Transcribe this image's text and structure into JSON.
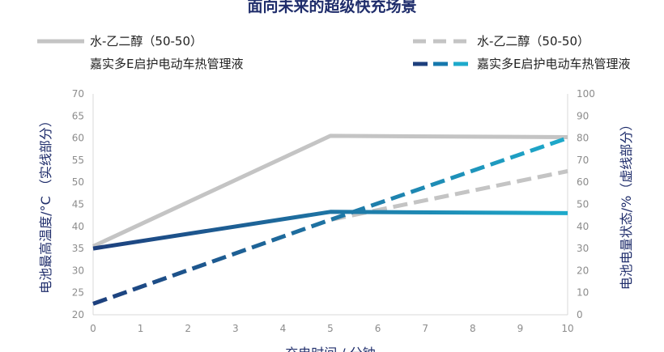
{
  "chart_data": {
    "type": "line",
    "title": "面向未来的超级快充场景",
    "xlabel": "充电时间 / 分钟",
    "ylabel_left": "电池最高温度/°C （实线部分）",
    "ylabel_right": "电池电量状态/%（虚线部分）",
    "x_ticks": [
      "0",
      "1",
      "2",
      "3",
      "4",
      "5",
      "6",
      "7",
      "8",
      "9",
      "10"
    ],
    "y_left_ticks": [
      "20",
      "25",
      "30",
      "35",
      "40",
      "45",
      "50",
      "55",
      "60",
      "65",
      "70"
    ],
    "y_right_ticks": [
      "0",
      "10",
      "20",
      "30",
      "40",
      "50",
      "60",
      "70",
      "80",
      "90",
      "100"
    ],
    "xlim": [
      0,
      10
    ],
    "ylim_left": [
      20,
      70
    ],
    "ylim_right": [
      0,
      100
    ],
    "legend_placement": "top",
    "series": [
      {
        "name": "水-乙二醇（50-50）",
        "axis": "left",
        "style": "solid",
        "color": "#c4c4c4",
        "x": [
          0,
          5,
          10
        ],
        "y": [
          35.5,
          60.5,
          60.2
        ]
      },
      {
        "name": "嘉实多E启护电动车热管理液",
        "axis": "left",
        "style": "solid",
        "color": "#1478b5",
        "x": [
          0,
          5,
          10
        ],
        "y": [
          35,
          43.3,
          43
        ]
      },
      {
        "name": "水-乙二醇（50-50）",
        "axis": "right",
        "style": "dashed",
        "color": "#c4c4c4",
        "x": [
          0,
          5,
          10
        ],
        "y": [
          5,
          43,
          65
        ]
      },
      {
        "name": "嘉实多E启护电动车热管理液",
        "axis": "right",
        "style": "dashed",
        "color": "#1478b5",
        "x": [
          0,
          5,
          10
        ],
        "y": [
          5,
          43,
          80
        ]
      }
    ]
  }
}
